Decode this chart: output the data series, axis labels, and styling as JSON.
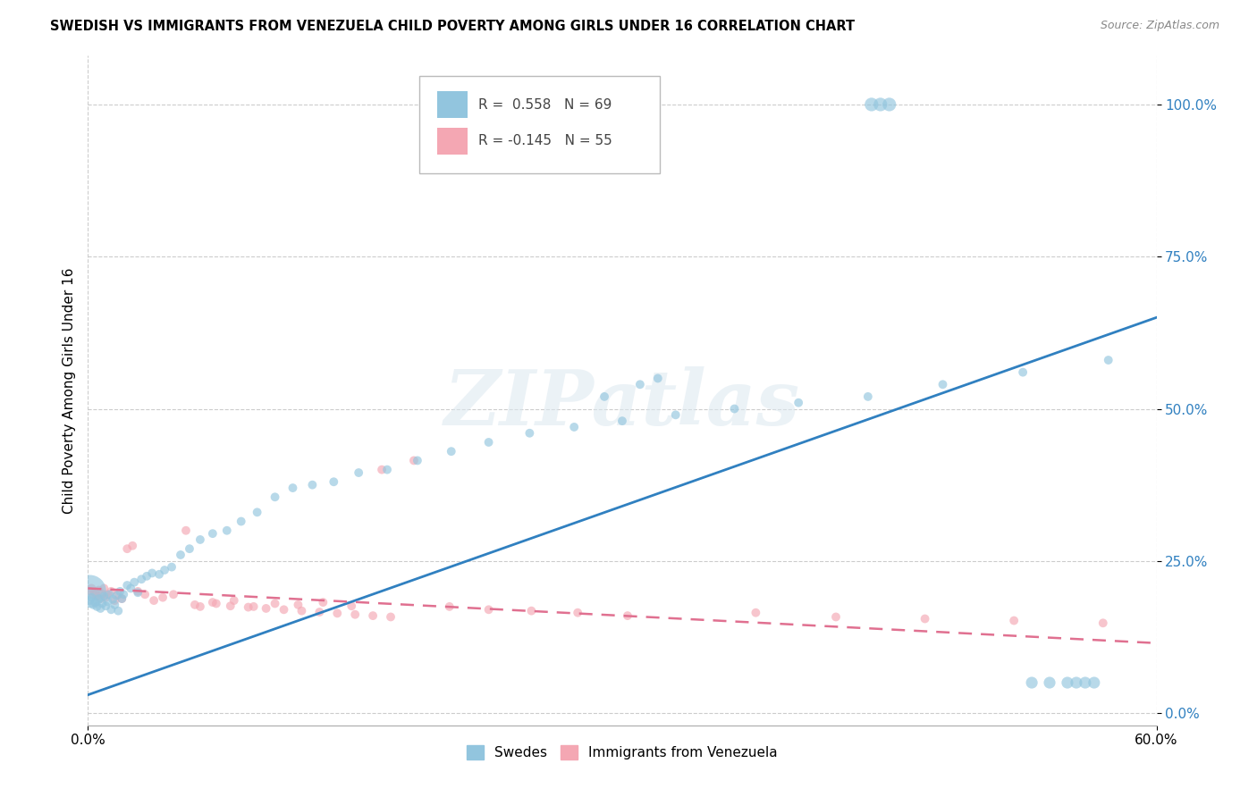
{
  "title": "SWEDISH VS IMMIGRANTS FROM VENEZUELA CHILD POVERTY AMONG GIRLS UNDER 16 CORRELATION CHART",
  "source": "Source: ZipAtlas.com",
  "ylabel": "Child Poverty Among Girls Under 16",
  "legend_label1": "Swedes",
  "legend_label2": "Immigrants from Venezuela",
  "r1": "0.558",
  "n1": "69",
  "r2": "-0.145",
  "n2": "55",
  "color_swedes": "#92c5de",
  "color_venezuela": "#f4a7b3",
  "color_swedes_line": "#3080c0",
  "color_venezuela_line": "#e07090",
  "xlim": [
    0.0,
    0.6
  ],
  "ylim": [
    -0.02,
    1.08
  ],
  "swedes_line_x0": 0.0,
  "swedes_line_y0": 0.03,
  "swedes_line_x1": 0.6,
  "swedes_line_y1": 0.65,
  "venezuela_line_x0": 0.0,
  "venezuela_line_y0": 0.205,
  "venezuela_line_x1": 0.6,
  "venezuela_line_y1": 0.115,
  "swedes_x": [
    0.001,
    0.002,
    0.003,
    0.004,
    0.005,
    0.006,
    0.007,
    0.008,
    0.009,
    0.01,
    0.011,
    0.012,
    0.013,
    0.014,
    0.015,
    0.016,
    0.017,
    0.018,
    0.019,
    0.02,
    0.022,
    0.024,
    0.026,
    0.028,
    0.03,
    0.033,
    0.036,
    0.04,
    0.043,
    0.047,
    0.052,
    0.057,
    0.063,
    0.07,
    0.078,
    0.086,
    0.095,
    0.105,
    0.115,
    0.126,
    0.138,
    0.152,
    0.168,
    0.185,
    0.204,
    0.225,
    0.248,
    0.273,
    0.3,
    0.33,
    0.363,
    0.399,
    0.438,
    0.48,
    0.525,
    0.573,
    0.29,
    0.31,
    0.32,
    0.44,
    0.445,
    0.45,
    0.53,
    0.54,
    0.55,
    0.555,
    0.56,
    0.565,
    0.001
  ],
  "swedes_y": [
    0.185,
    0.19,
    0.178,
    0.182,
    0.175,
    0.188,
    0.172,
    0.18,
    0.192,
    0.176,
    0.183,
    0.195,
    0.17,
    0.187,
    0.178,
    0.193,
    0.168,
    0.2,
    0.188,
    0.195,
    0.21,
    0.205,
    0.215,
    0.198,
    0.22,
    0.225,
    0.23,
    0.228,
    0.235,
    0.24,
    0.26,
    0.27,
    0.285,
    0.295,
    0.3,
    0.315,
    0.33,
    0.355,
    0.37,
    0.375,
    0.38,
    0.395,
    0.4,
    0.415,
    0.43,
    0.445,
    0.46,
    0.47,
    0.48,
    0.49,
    0.5,
    0.51,
    0.52,
    0.54,
    0.56,
    0.58,
    0.52,
    0.54,
    0.55,
    1.0,
    1.0,
    1.0,
    0.05,
    0.05,
    0.05,
    0.05,
    0.05,
    0.05,
    0.2
  ],
  "swedes_size": [
    50,
    50,
    50,
    50,
    50,
    50,
    50,
    50,
    50,
    50,
    50,
    50,
    50,
    50,
    50,
    50,
    50,
    50,
    50,
    50,
    50,
    50,
    50,
    50,
    50,
    50,
    50,
    50,
    50,
    50,
    50,
    50,
    50,
    50,
    50,
    50,
    50,
    50,
    50,
    50,
    50,
    50,
    50,
    50,
    50,
    50,
    50,
    50,
    50,
    50,
    50,
    50,
    50,
    50,
    50,
    50,
    50,
    50,
    50,
    120,
    120,
    120,
    90,
    90,
    90,
    90,
    90,
    90,
    700
  ],
  "venezuela_x": [
    0.001,
    0.002,
    0.003,
    0.004,
    0.005,
    0.006,
    0.007,
    0.008,
    0.009,
    0.01,
    0.011,
    0.013,
    0.015,
    0.017,
    0.019,
    0.022,
    0.025,
    0.028,
    0.032,
    0.037,
    0.042,
    0.048,
    0.055,
    0.063,
    0.072,
    0.082,
    0.093,
    0.105,
    0.118,
    0.132,
    0.148,
    0.165,
    0.183,
    0.203,
    0.225,
    0.249,
    0.275,
    0.303,
    0.06,
    0.07,
    0.08,
    0.09,
    0.1,
    0.11,
    0.12,
    0.13,
    0.14,
    0.15,
    0.16,
    0.17,
    0.375,
    0.42,
    0.47,
    0.52,
    0.57
  ],
  "venezuela_y": [
    0.2,
    0.205,
    0.195,
    0.198,
    0.192,
    0.202,
    0.188,
    0.196,
    0.205,
    0.19,
    0.195,
    0.2,
    0.185,
    0.195,
    0.188,
    0.27,
    0.275,
    0.2,
    0.195,
    0.185,
    0.19,
    0.195,
    0.3,
    0.175,
    0.18,
    0.185,
    0.175,
    0.18,
    0.178,
    0.182,
    0.176,
    0.4,
    0.415,
    0.175,
    0.17,
    0.168,
    0.165,
    0.16,
    0.178,
    0.182,
    0.176,
    0.174,
    0.172,
    0.17,
    0.168,
    0.166,
    0.164,
    0.162,
    0.16,
    0.158,
    0.165,
    0.158,
    0.155,
    0.152,
    0.148
  ],
  "venezuela_size": [
    50,
    50,
    50,
    50,
    50,
    50,
    50,
    50,
    50,
    50,
    50,
    50,
    50,
    50,
    50,
    50,
    50,
    50,
    50,
    50,
    50,
    50,
    50,
    50,
    50,
    50,
    50,
    50,
    50,
    50,
    50,
    50,
    50,
    50,
    50,
    50,
    50,
    50,
    50,
    50,
    50,
    50,
    50,
    50,
    50,
    50,
    50,
    50,
    50,
    50,
    50,
    50,
    50,
    50,
    50
  ],
  "watermark_text": "ZIPatlas",
  "ytick_vals": [
    0.0,
    0.25,
    0.5,
    0.75,
    1.0
  ],
  "ytick_labels": [
    "0.0%",
    "25.0%",
    "50.0%",
    "75.0%",
    "100.0%"
  ]
}
